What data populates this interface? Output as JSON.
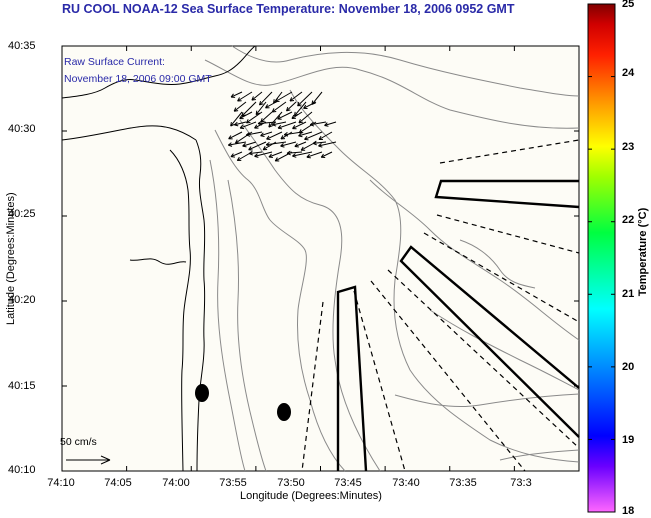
{
  "title": "RU COOL  NOAA-12  Sea Surface Temperature:  November 18, 2006 0952 GMT",
  "current_label": {
    "line1": "Raw Surface Current:",
    "line2": "November 18, 2006 09:00 GMT"
  },
  "axes": {
    "ylabel": "Latitude (Degrees:Minutes)",
    "xlabel": "Longitude (Degrees:Minutes)",
    "yticks": [
      "40:35",
      "40:30",
      "40:25",
      "40:20",
      "40:15",
      "40:10"
    ],
    "xticks": [
      "74:10",
      "74:05",
      "74:00",
      "73:55",
      "73:50",
      "73:45",
      "73:40",
      "73:35",
      "73:3"
    ]
  },
  "colorbar": {
    "label": "Temperature (°C)",
    "ticks": [
      "25",
      "24",
      "23",
      "22",
      "21",
      "20",
      "19",
      "18"
    ],
    "min": 18,
    "max": 25,
    "colors": [
      "#ff66ff",
      "#0000ff",
      "#00ffff",
      "#00ff00",
      "#ffff00",
      "#ff8000",
      "#ff0000",
      "#800000"
    ]
  },
  "scale_label": "50 cm/s",
  "colors": {
    "title": "#2a2aa8",
    "land_contour": "#000000",
    "bathymetry": "#8a8a8a",
    "sea_fill": "#fdfcf6"
  }
}
